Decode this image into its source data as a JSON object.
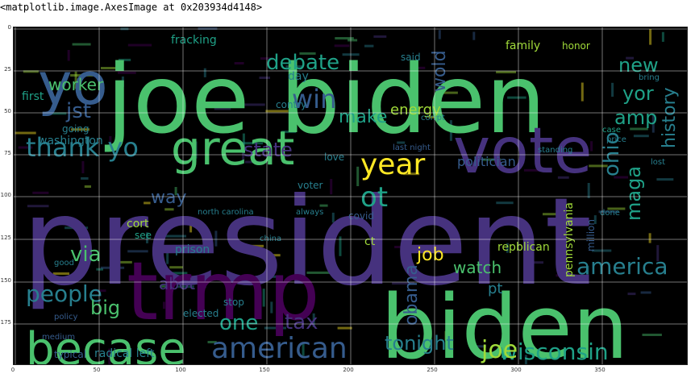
{
  "caption": "<matplotlib.image.AxesImage at 0x203934d4148>",
  "axes": {
    "y_ticks": [
      "0",
      "25",
      "50",
      "75",
      "100",
      "125",
      "150",
      "175"
    ],
    "x_ticks": [
      "0",
      "50",
      "100",
      "150",
      "200",
      "250",
      "300",
      "350"
    ]
  },
  "colors": {
    "background": "#000000",
    "gridline": "#ffffff",
    "palette": [
      "#440154",
      "#46327e",
      "#365c8d",
      "#277f8e",
      "#1fa187",
      "#4ac16d",
      "#a0da39",
      "#fde725"
    ]
  },
  "words": [
    {
      "text": "president",
      "color": "#46327e"
    },
    {
      "text": "joe biden",
      "color": "#4ac16d"
    },
    {
      "text": "biden",
      "color": "#4ac16d"
    },
    {
      "text": "trmp",
      "color": "#440154"
    },
    {
      "text": "vote",
      "color": "#46327e"
    },
    {
      "text": "great",
      "color": "#4ac16d"
    },
    {
      "text": "yo",
      "color": "#365c8d"
    },
    {
      "text": "becase",
      "color": "#4ac16d"
    },
    {
      "text": "american",
      "color": "#365c8d"
    },
    {
      "text": "thank yo",
      "color": "#277f8e"
    },
    {
      "text": "year",
      "color": "#fde725"
    },
    {
      "text": "people",
      "color": "#277f8e"
    },
    {
      "text": "america",
      "color": "#277f8e"
    },
    {
      "text": "wisconsin",
      "color": "#1fa187"
    },
    {
      "text": "debate",
      "color": "#1fa187"
    },
    {
      "text": "worker",
      "color": "#4ac16d"
    },
    {
      "text": "jst",
      "color": "#365c8d"
    },
    {
      "text": "win",
      "color": "#365c8d"
    },
    {
      "text": "new",
      "color": "#1fa187"
    },
    {
      "text": "yor",
      "color": "#1fa187"
    },
    {
      "text": "amp",
      "color": "#1fa187"
    },
    {
      "text": "ohio",
      "color": "#277f8e"
    },
    {
      "text": "maga",
      "color": "#1fa187"
    },
    {
      "text": "history",
      "color": "#277f8e"
    },
    {
      "text": "make",
      "color": "#1fa187"
    },
    {
      "text": "energy",
      "color": "#a0da39"
    },
    {
      "text": "wold",
      "color": "#365c8d"
    },
    {
      "text": "state",
      "color": "#46327e"
    },
    {
      "text": "ot",
      "color": "#1fa187"
    },
    {
      "text": "way",
      "color": "#365c8d"
    },
    {
      "text": "via",
      "color": "#4ac16d"
    },
    {
      "text": "big",
      "color": "#4ac16d"
    },
    {
      "text": "job",
      "color": "#fde725"
    },
    {
      "text": "obama",
      "color": "#365c8d"
    },
    {
      "text": "watch",
      "color": "#4ac16d"
    },
    {
      "text": "joe",
      "color": "#a0da39"
    },
    {
      "text": "tonight",
      "color": "#277f8e"
    },
    {
      "text": "tax",
      "color": "#46327e"
    },
    {
      "text": "one",
      "color": "#1fa187"
    },
    {
      "text": "abot",
      "color": "#46327e"
    },
    {
      "text": "politician",
      "color": "#365c8d"
    },
    {
      "text": "pennsylvania",
      "color": "#a0da39"
    },
    {
      "text": "repblican",
      "color": "#a0da39"
    },
    {
      "text": "family",
      "color": "#a0da39"
    },
    {
      "text": "honor",
      "color": "#a0da39"
    },
    {
      "text": "fracking",
      "color": "#1fa187"
    },
    {
      "text": "day",
      "color": "#277f8e"
    },
    {
      "text": "first",
      "color": "#1fa187"
    },
    {
      "text": "contry",
      "color": "#277f8e"
    },
    {
      "text": "going",
      "color": "#277f8e"
    },
    {
      "text": "washington",
      "color": "#277f8e"
    },
    {
      "text": "cort",
      "color": "#a0da39"
    },
    {
      "text": "see",
      "color": "#1fa187"
    },
    {
      "text": "prison",
      "color": "#277f8e"
    },
    {
      "text": "voter",
      "color": "#277f8e"
    },
    {
      "text": "covid",
      "color": "#365c8d"
    },
    {
      "text": "north carolina",
      "color": "#277f8e"
    },
    {
      "text": "always",
      "color": "#277f8e"
    },
    {
      "text": "medium",
      "color": "#365c8d"
    },
    {
      "text": "policy",
      "color": "#365c8d"
    },
    {
      "text": "stop",
      "color": "#277f8e"
    },
    {
      "text": "elected",
      "color": "#277f8e"
    },
    {
      "text": "radical left",
      "color": "#277f8e"
    },
    {
      "text": "typical",
      "color": "#365c8d"
    },
    {
      "text": "good",
      "color": "#277f8e"
    },
    {
      "text": "said",
      "color": "#277f8e"
    },
    {
      "text": "case",
      "color": "#1fa187"
    },
    {
      "text": "price",
      "color": "#277f8e"
    },
    {
      "text": "done",
      "color": "#277f8e"
    },
    {
      "text": "million",
      "color": "#365c8d"
    },
    {
      "text": "china",
      "color": "#277f8e"
    },
    {
      "text": "love",
      "color": "#277f8e"
    },
    {
      "text": "standing",
      "color": "#277f8e"
    },
    {
      "text": "lost",
      "color": "#277f8e"
    },
    {
      "text": "last night",
      "color": "#365c8d"
    },
    {
      "text": "corrpt",
      "color": "#277f8e"
    },
    {
      "text": "ct",
      "color": "#a0da39"
    },
    {
      "text": "pt",
      "color": "#277f8e"
    },
    {
      "text": "bring",
      "color": "#277f8e"
    }
  ]
}
